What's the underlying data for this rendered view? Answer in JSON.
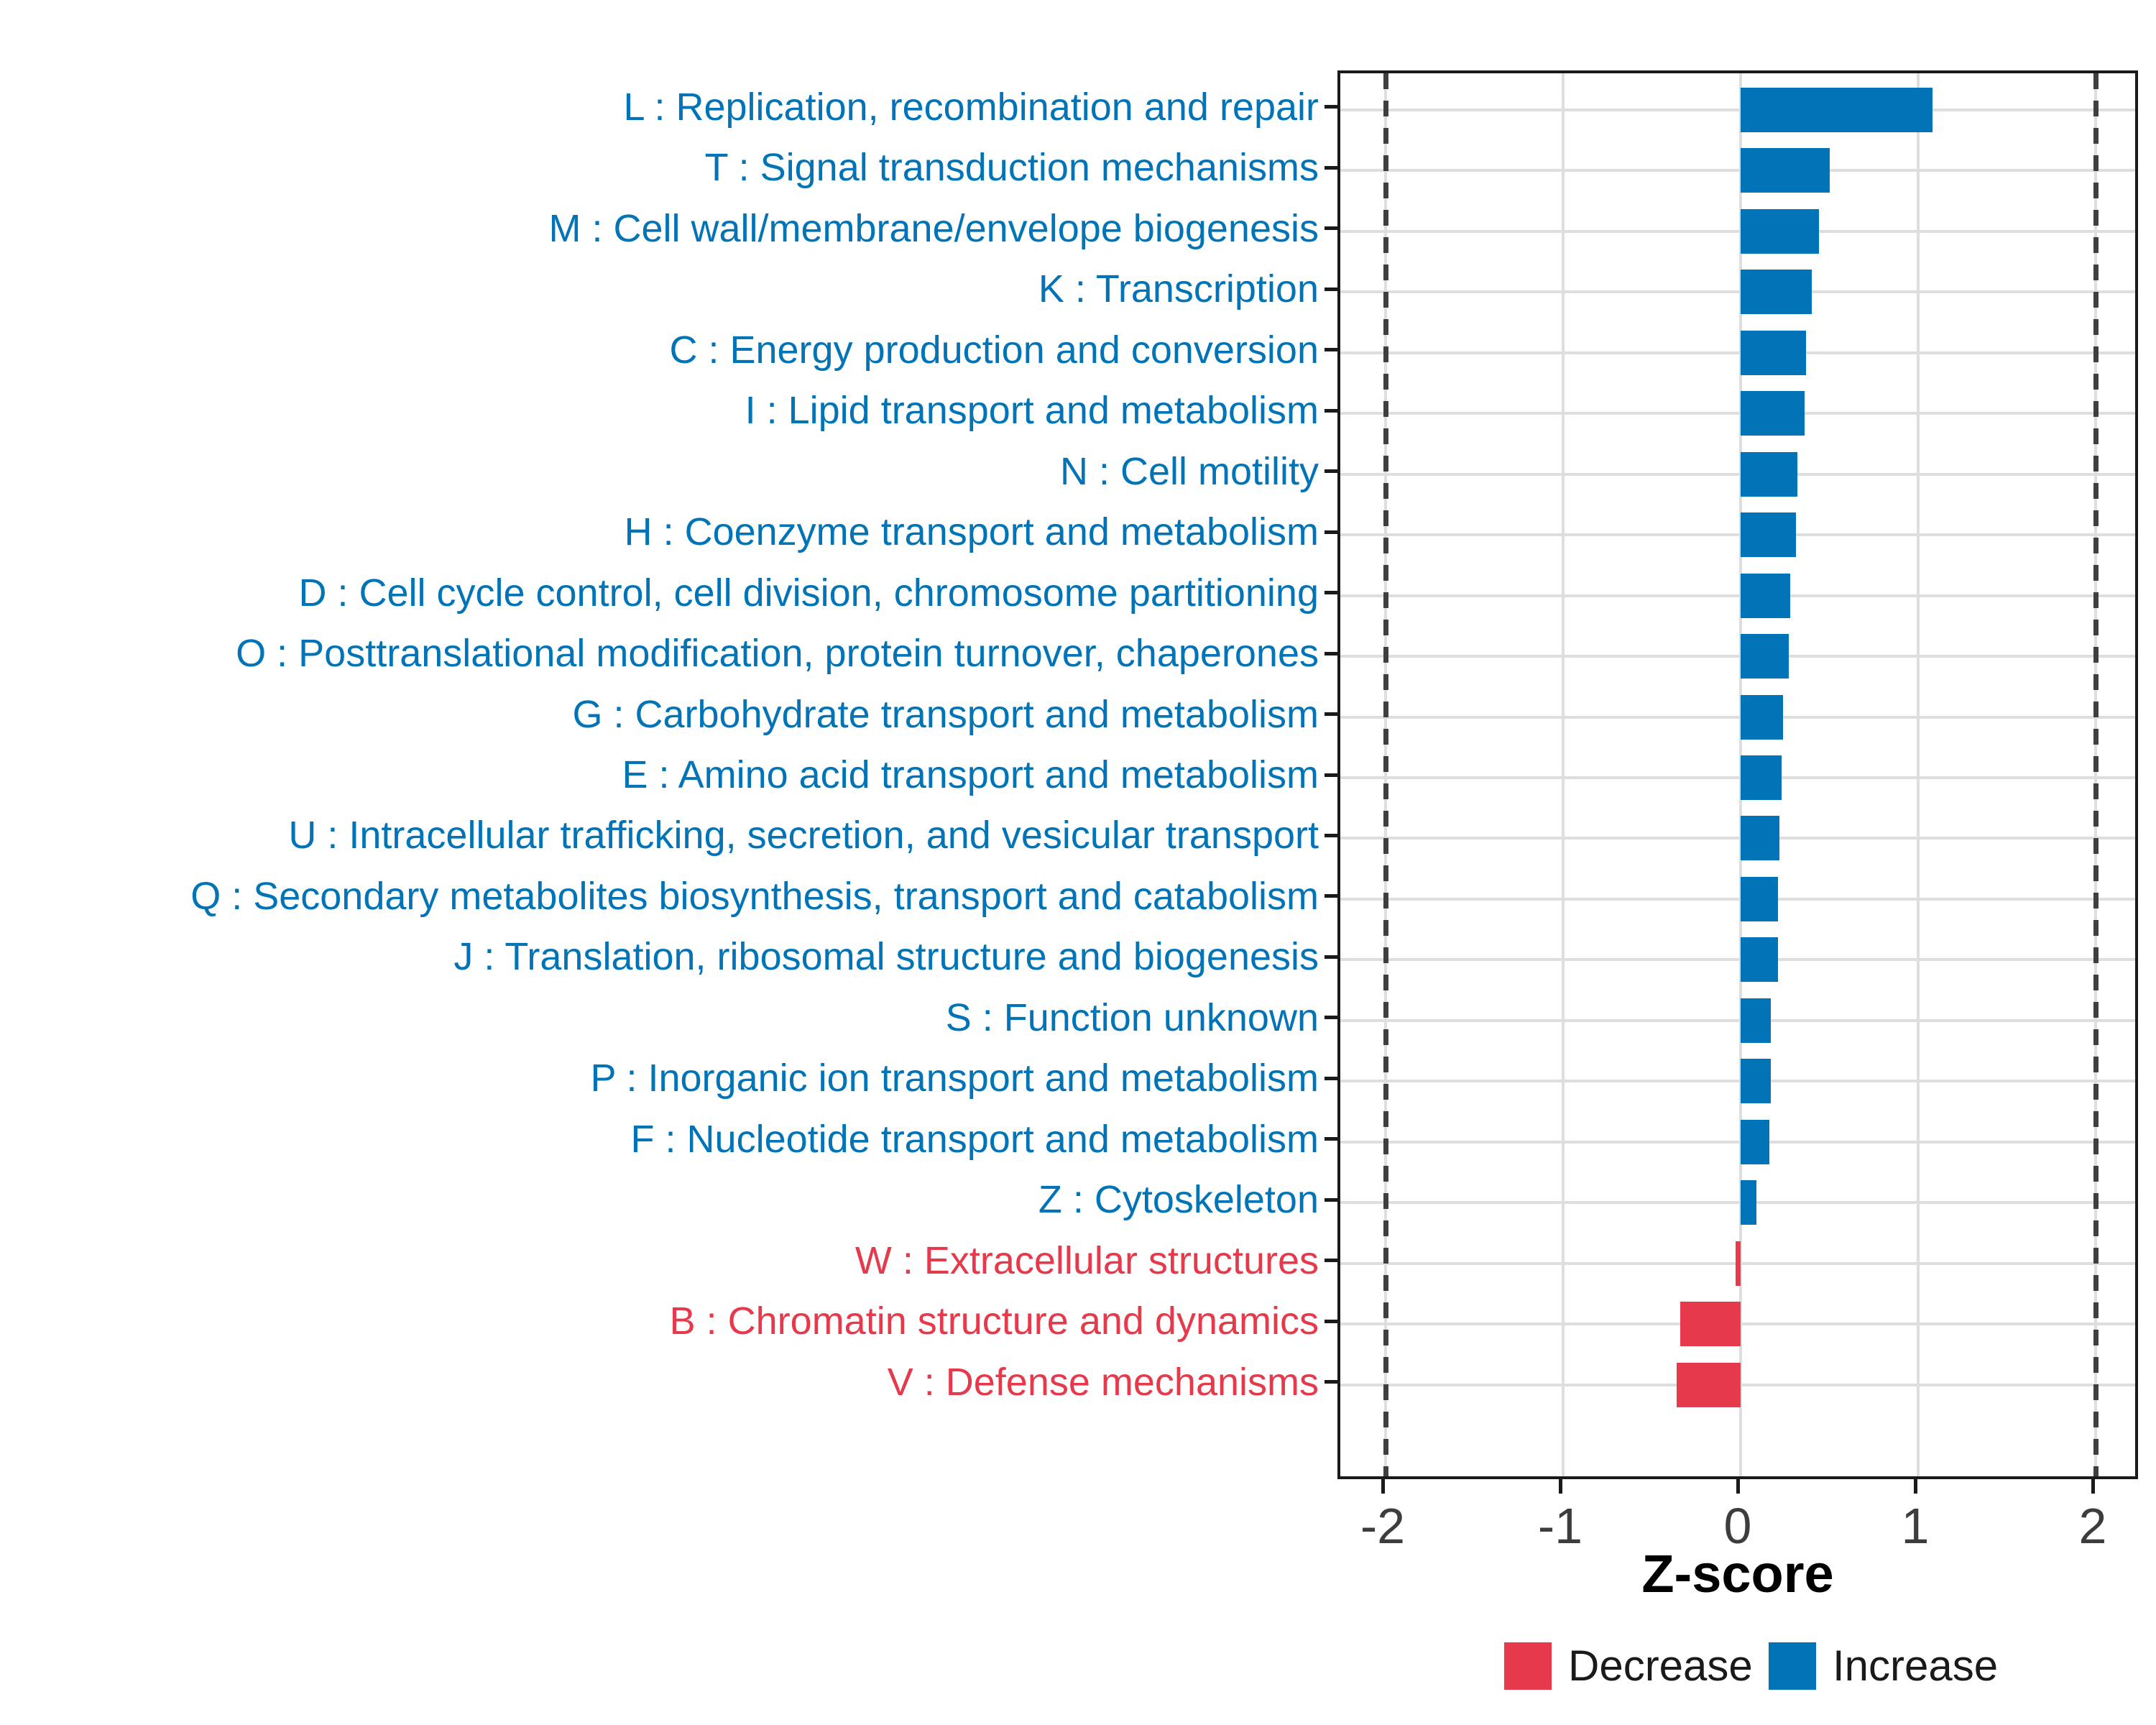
{
  "figure": {
    "xlabel": "Z-score",
    "legend": {
      "decrease_label": "Decrease",
      "increase_label": "Increase"
    }
  },
  "colors": {
    "increase": "#0074B7",
    "decrease": "#E6394B",
    "grid": "#DEDEDE",
    "axis_text": "#3D3D3D",
    "panel_border": "#1A1A1A",
    "reference_line": "#3F3F3F"
  },
  "chart_data": {
    "type": "bar",
    "orientation": "horizontal",
    "title": "",
    "xlabel": "Z-score",
    "ylabel": "",
    "xlim": [
      -2.26,
      2.26
    ],
    "x_ticks": [
      -2,
      -1,
      0,
      1,
      2
    ],
    "reference_lines_x": [
      -2,
      2
    ],
    "grid": true,
    "legend_position": "bottom-right",
    "legend": [
      {
        "name": "Decrease",
        "color": "#E6394B"
      },
      {
        "name": "Increase",
        "color": "#0074B7"
      }
    ],
    "bars": [
      {
        "category": "L : Replication, recombination and repair",
        "value": 1.08,
        "group": "Increase"
      },
      {
        "category": "T : Signal transduction mechanisms",
        "value": 0.5,
        "group": "Increase"
      },
      {
        "category": "M : Cell wall/membrane/envelope biogenesis",
        "value": 0.44,
        "group": "Increase"
      },
      {
        "category": "K : Transcription",
        "value": 0.4,
        "group": "Increase"
      },
      {
        "category": "C : Energy production and conversion",
        "value": 0.37,
        "group": "Increase"
      },
      {
        "category": "I : Lipid transport and metabolism",
        "value": 0.36,
        "group": "Increase"
      },
      {
        "category": "N : Cell motility",
        "value": 0.32,
        "group": "Increase"
      },
      {
        "category": "H : Coenzyme transport and metabolism",
        "value": 0.31,
        "group": "Increase"
      },
      {
        "category": "D : Cell cycle control, cell division, chromosome partitioning",
        "value": 0.28,
        "group": "Increase"
      },
      {
        "category": "O : Posttranslational modification, protein turnover, chaperones",
        "value": 0.27,
        "group": "Increase"
      },
      {
        "category": "G : Carbohydrate transport and metabolism",
        "value": 0.24,
        "group": "Increase"
      },
      {
        "category": "E : Amino acid transport and metabolism",
        "value": 0.23,
        "group": "Increase"
      },
      {
        "category": "U : Intracellular trafficking, secretion, and vesicular transport",
        "value": 0.22,
        "group": "Increase"
      },
      {
        "category": "Q : Secondary metabolites biosynthesis, transport and catabolism",
        "value": 0.21,
        "group": "Increase"
      },
      {
        "category": "J : Translation, ribosomal structure and biogenesis",
        "value": 0.21,
        "group": "Increase"
      },
      {
        "category": "S : Function unknown",
        "value": 0.17,
        "group": "Increase"
      },
      {
        "category": "P : Inorganic ion transport and metabolism",
        "value": 0.17,
        "group": "Increase"
      },
      {
        "category": "F : Nucleotide transport and metabolism",
        "value": 0.16,
        "group": "Increase"
      },
      {
        "category": "Z : Cytoskeleton",
        "value": 0.09,
        "group": "Increase"
      },
      {
        "category": "W : Extracellular structures",
        "value": -0.03,
        "group": "Decrease"
      },
      {
        "category": "B : Chromatin structure and dynamics",
        "value": -0.34,
        "group": "Decrease"
      },
      {
        "category": "V : Defense mechanisms",
        "value": -0.36,
        "group": "Decrease"
      }
    ]
  }
}
